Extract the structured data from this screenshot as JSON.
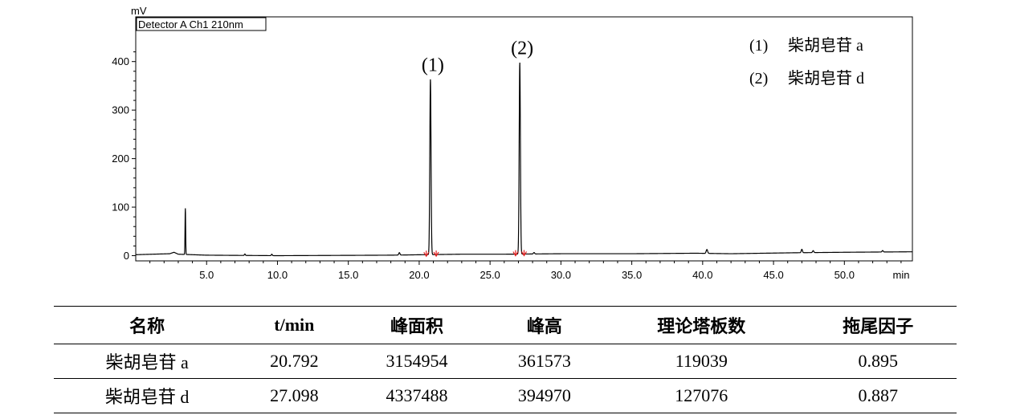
{
  "chart_data": {
    "type": "line",
    "detector_label": "Detector A Ch1 210nm",
    "y_unit": "mV",
    "x_unit": "min",
    "xlim": [
      0,
      54.8
    ],
    "ylim": [
      0,
      420
    ],
    "x_ticks": [
      "5.0",
      "10.0",
      "15.0",
      "20.0",
      "25.0",
      "30.0",
      "35.0",
      "40.0",
      "45.0",
      "50.0"
    ],
    "y_ticks": [
      "0",
      "100",
      "200",
      "300",
      "400"
    ],
    "baseline": [
      [
        0,
        2
      ],
      [
        2.4,
        4
      ],
      [
        2.7,
        7
      ],
      [
        3.0,
        3
      ],
      [
        5.0,
        1
      ],
      [
        10.0,
        0
      ],
      [
        18.0,
        1
      ],
      [
        20.3,
        2
      ],
      [
        23.0,
        3
      ],
      [
        26.0,
        3
      ],
      [
        30.0,
        4
      ],
      [
        35.0,
        4
      ],
      [
        39.5,
        5
      ],
      [
        42.0,
        4
      ],
      [
        46.5,
        6
      ],
      [
        50.0,
        7
      ],
      [
        54.8,
        8
      ]
    ],
    "peaks": [
      {
        "label": "",
        "rt": 3.5,
        "height": 95,
        "width": 0.05
      },
      {
        "label": "(1)",
        "rt": 20.792,
        "height": 361.6,
        "width": 0.1
      },
      {
        "label": "(2)",
        "rt": 27.098,
        "height": 395.0,
        "width": 0.1
      },
      {
        "label": "",
        "rt": 7.7,
        "height": 3,
        "width": 0.08
      },
      {
        "label": "",
        "rt": 9.6,
        "height": 3,
        "width": 0.08
      },
      {
        "label": "",
        "rt": 18.6,
        "height": 5,
        "width": 0.1
      },
      {
        "label": "",
        "rt": 28.1,
        "height": 3,
        "width": 0.1
      },
      {
        "label": "",
        "rt": 40.3,
        "height": 8,
        "width": 0.12
      },
      {
        "label": "",
        "rt": 47.0,
        "height": 7,
        "width": 0.1
      },
      {
        "label": "",
        "rt": 47.8,
        "height": 4,
        "width": 0.1
      },
      {
        "label": "",
        "rt": 52.7,
        "height": 3,
        "width": 0.1
      }
    ],
    "integration_marks": [
      20.5,
      21.2,
      26.8,
      27.4
    ],
    "legend": [
      {
        "marker": "(1)",
        "name": "柴胡皂苷 a"
      },
      {
        "marker": "(2)",
        "name": "柴胡皂苷 d"
      }
    ],
    "legend_position": "top-right"
  },
  "table": {
    "headers": [
      "名称",
      "t/min",
      "峰面积",
      "峰高",
      "理论塔板数",
      "拖尾因子"
    ],
    "rows": [
      [
        "柴胡皂苷 a",
        "20.792",
        "3154954",
        "361573",
        "119039",
        "0.895"
      ],
      [
        "柴胡皂苷 d",
        "27.098",
        "4337488",
        "394970",
        "127076",
        "0.887"
      ]
    ]
  }
}
